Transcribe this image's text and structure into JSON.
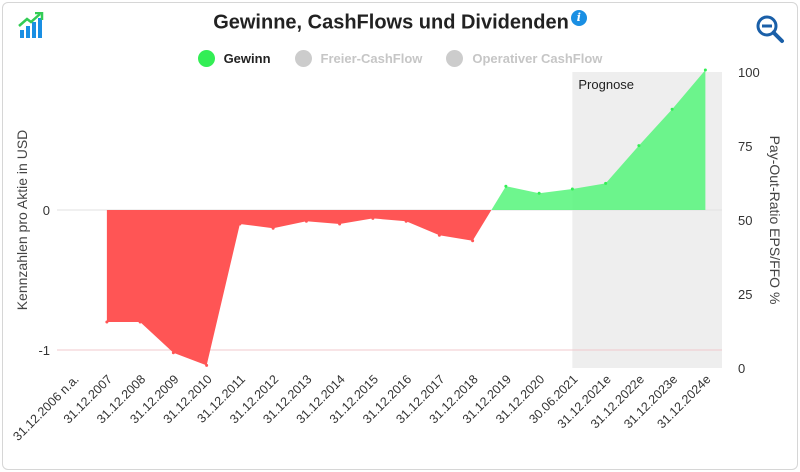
{
  "header": {
    "title": "Gewinne, CashFlows und Dividenden",
    "info_icon": "info-icon",
    "logo_icon": "growth-chart-icon",
    "zoom_icon": "zoom-out-icon"
  },
  "colors": {
    "gewinn": "#33ee55",
    "gewinn_fill_positive": "#55f57a",
    "gewinn_fill_negative": "#ff5555",
    "inactive": "#cccccc",
    "prognose_band": "#eeeeee",
    "accent": "#1a8fe3"
  },
  "legend": [
    {
      "label": "Gewinn",
      "color": "#33ee55",
      "active": true
    },
    {
      "label": "Freier-CashFlow",
      "color": "#cccccc",
      "active": false
    },
    {
      "label": "Operativer CashFlow",
      "color": "#cccccc",
      "active": false
    }
  ],
  "chart_data": {
    "type": "area",
    "title": "Gewinne, CashFlows und Dividenden",
    "ylabel_left": "Kennzahlen pro Aktie in USD",
    "ylabel_right": "Pay-Out-Ratio EPS/FFO %",
    "categories": [
      "31.12.2006 n.a.",
      "31.12.2007",
      "31.12.2008",
      "31.12.2009",
      "31.12.2010",
      "31.12.2011",
      "31.12.2012",
      "31.12.2013",
      "31.12.2014",
      "31.12.2015",
      "31.12.2016",
      "31.12.2017",
      "31.12.2018",
      "31.12.2019",
      "31.12.2020",
      "30.06.2021",
      "31.12.2021e",
      "31.12.2022e",
      "31.12.2023e",
      "31.12.2024e"
    ],
    "series": [
      {
        "name": "Gewinn",
        "values": [
          null,
          -0.8,
          -0.8,
          -1.02,
          -1.11,
          -0.1,
          -0.13,
          -0.08,
          -0.1,
          -0.06,
          -0.08,
          -0.18,
          -0.22,
          0.17,
          0.12,
          0.15,
          0.19,
          0.46,
          0.72,
          1.0
        ]
      }
    ],
    "ylim_left": [
      -1.12,
      1.0
    ],
    "yticks_left": [
      0,
      -1
    ],
    "ylim_right": [
      0,
      100
    ],
    "yticks_right": [
      0,
      25,
      50,
      75,
      100
    ],
    "forecast_band": {
      "label": "Prognose",
      "from_category": "30.06.2021",
      "to_category": "31.12.2024e"
    },
    "legend_position": "top-center"
  }
}
